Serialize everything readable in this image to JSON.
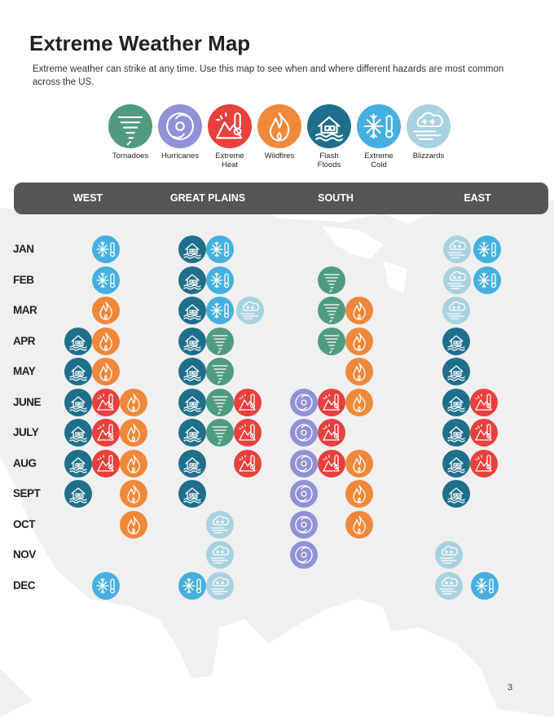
{
  "title": "Extreme Weather Map",
  "intro": "Extreme weather can strike at any time. Use this map to see when and where different hazards are most common across the US.",
  "page_number": "3",
  "hazards": [
    {
      "id": "tornado",
      "label": "Tornadoes",
      "color": "#4f9b7e",
      "icon": "tornado-icon"
    },
    {
      "id": "hurricane",
      "label": "Hurricanes",
      "color": "#8f92d6",
      "icon": "hurricane-icon"
    },
    {
      "id": "heat",
      "label": "Extreme\nHeat",
      "color": "#e8403d",
      "icon": "heat-icon"
    },
    {
      "id": "fire",
      "label": "Wildfires",
      "color": "#f0883a",
      "icon": "wildfire-icon"
    },
    {
      "id": "flood",
      "label": "Flash\nFloods",
      "color": "#1f6f8b",
      "icon": "flood-icon"
    },
    {
      "id": "cold",
      "label": "Extreme\nCold",
      "color": "#45b0df",
      "icon": "cold-icon"
    },
    {
      "id": "blizzard",
      "label": "Blizzards",
      "color": "#a9d2df",
      "icon": "blizzard-icon"
    }
  ],
  "regions": [
    "WEST",
    "GREAT PLAINS",
    "SOUTH",
    "EAST"
  ],
  "months": [
    "JAN",
    "FEB",
    "MAR",
    "APR",
    "MAY",
    "JUNE",
    "JULY",
    "AUG",
    "SEPT",
    "OCT",
    "NOV",
    "DEC"
  ],
  "chart_data": {
    "type": "table",
    "rows": "months",
    "columns": "regions",
    "cells": {
      "WEST": {
        "JAN": [
          "cold"
        ],
        "FEB": [
          "cold"
        ],
        "MAR": [
          "fire"
        ],
        "APR": [
          "flood",
          "fire"
        ],
        "MAY": [
          "flood",
          "fire"
        ],
        "JUNE": [
          "flood",
          "heat",
          "fire"
        ],
        "JULY": [
          "flood",
          "heat",
          "fire"
        ],
        "AUG": [
          "flood",
          "heat",
          "fire"
        ],
        "SEPT": [
          "flood",
          "fire"
        ],
        "OCT": [
          "fire"
        ],
        "NOV": [],
        "DEC": [
          "cold"
        ]
      },
      "GREAT PLAINS": {
        "JAN": [
          "flood",
          "cold"
        ],
        "FEB": [
          "flood",
          "cold"
        ],
        "MAR": [
          "flood",
          "cold",
          "blizzard"
        ],
        "APR": [
          "flood",
          "tornado"
        ],
        "MAY": [
          "flood",
          "tornado"
        ],
        "JUNE": [
          "flood",
          "tornado",
          "heat"
        ],
        "JULY": [
          "flood",
          "tornado",
          "heat"
        ],
        "AUG": [
          "flood",
          "heat"
        ],
        "SEPT": [
          "flood"
        ],
        "OCT": [
          "blizzard"
        ],
        "NOV": [
          "blizzard"
        ],
        "DEC": [
          "cold",
          "blizzard"
        ]
      },
      "SOUTH": {
        "JAN": [],
        "FEB": [
          "tornado"
        ],
        "MAR": [
          "tornado",
          "fire"
        ],
        "APR": [
          "tornado",
          "fire"
        ],
        "MAY": [
          "fire"
        ],
        "JUNE": [
          "hurricane",
          "heat",
          "fire"
        ],
        "JULY": [
          "hurricane",
          "heat"
        ],
        "AUG": [
          "hurricane",
          "heat",
          "fire"
        ],
        "SEPT": [
          "hurricane",
          "fire"
        ],
        "OCT": [
          "hurricane",
          "fire"
        ],
        "NOV": [
          "hurricane"
        ],
        "DEC": []
      },
      "EAST": {
        "JAN": [
          "blizzard",
          "cold"
        ],
        "FEB": [
          "blizzard",
          "cold"
        ],
        "MAR": [
          "blizzard"
        ],
        "APR": [
          "flood"
        ],
        "MAY": [
          "flood"
        ],
        "JUNE": [
          "flood",
          "heat"
        ],
        "JULY": [
          "flood",
          "heat"
        ],
        "AUG": [
          "flood",
          "heat"
        ],
        "SEPT": [
          "flood"
        ],
        "OCT": [],
        "NOV": [
          "blizzard"
        ],
        "DEC": [
          "blizzard",
          "cold"
        ]
      }
    }
  }
}
